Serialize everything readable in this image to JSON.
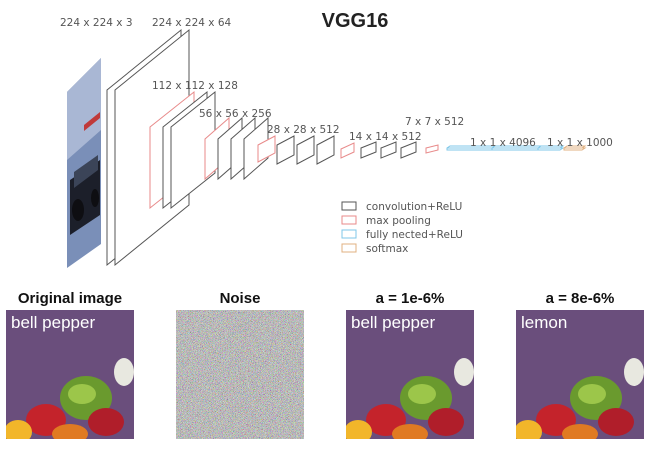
{
  "title": "VGG16",
  "dims": {
    "input": "224 x 224 x 3",
    "conv1": "224 x 224 x 64",
    "conv2": "112 x 112 x 128",
    "conv3": "56 x 56 x 256",
    "conv4": "28 x 28 x 512",
    "conv5": "14 x 14 x 512",
    "pool5": "7 x 7 x 512",
    "fc": "1 x 1 x 4096",
    "softmax": "1 x 1 x 1000"
  },
  "legend": [
    {
      "label": "convolution+ReLU",
      "color": "#555555"
    },
    {
      "label": "max pooling",
      "color": "#e88a8a"
    },
    {
      "label": "fully nected+ReLU",
      "color": "#7fc7e8"
    },
    {
      "label": "softmax",
      "color": "#e0b080"
    }
  ],
  "panels": [
    {
      "title": "Original image",
      "caption": "bell pepper",
      "kind": "photo"
    },
    {
      "title": "Noise",
      "caption": "",
      "kind": "noise"
    },
    {
      "title": "a = 1e-6%",
      "caption": "bell pepper",
      "kind": "photo"
    },
    {
      "title": "a = 8e-6%",
      "caption": "lemon",
      "kind": "photo"
    }
  ]
}
